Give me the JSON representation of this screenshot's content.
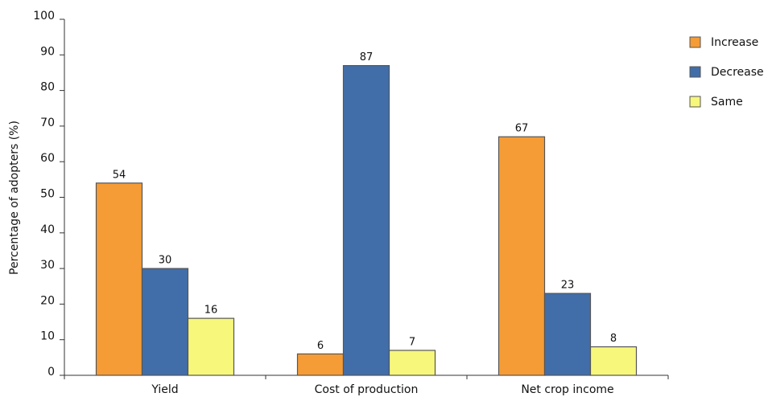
{
  "chart_data": {
    "type": "bar",
    "ylabel": "Percentage of adopters (%)",
    "categories": [
      "Yield",
      "Cost of production",
      "Net crop income"
    ],
    "series": [
      {
        "name": "Increase",
        "color": "#f59c36",
        "values": [
          54,
          6,
          67
        ]
      },
      {
        "name": "Decrease",
        "color": "#416ea9",
        "values": [
          30,
          87,
          23
        ]
      },
      {
        "name": "Same",
        "color": "#f7f77c",
        "values": [
          16,
          7,
          8
        ]
      }
    ],
    "ylim": [
      0,
      100
    ],
    "yticks": [
      0,
      10,
      20,
      30,
      40,
      50,
      60,
      70,
      80,
      90,
      100
    ],
    "legend": "right"
  }
}
